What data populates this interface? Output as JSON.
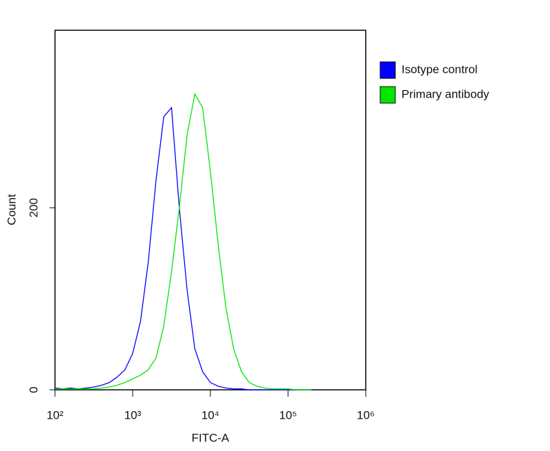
{
  "chart_data": {
    "type": "line",
    "x_label": "FITC-A",
    "y_label": "Count",
    "x": [
      100,
      126,
      158,
      200,
      251,
      316,
      398,
      501,
      631,
      794,
      1000,
      1259,
      1585,
      1995,
      2512,
      3162,
      3981,
      5012,
      6310,
      7943,
      10000,
      12589,
      15849,
      19953,
      25119,
      31623,
      39811,
      50119,
      63096,
      79433,
      100000,
      125893,
      158489,
      199526
    ],
    "series": [
      {
        "name": "Isotype control",
        "color": "#0000ff",
        "values": [
          2,
          1,
          2,
          1,
          2,
          3,
          5,
          8,
          14,
          22,
          40,
          75,
          140,
          230,
          300,
          310,
          200,
          110,
          45,
          20,
          8,
          4,
          2,
          1,
          1,
          0,
          0,
          0,
          0,
          0,
          0,
          0,
          0,
          0
        ]
      },
      {
        "name": "Primary antibody",
        "color": "#00e600",
        "values": [
          1,
          1,
          1,
          1,
          1,
          1,
          2,
          3,
          5,
          8,
          12,
          16,
          22,
          35,
          70,
          130,
          200,
          280,
          325,
          310,
          240,
          160,
          90,
          45,
          20,
          8,
          4,
          2,
          1,
          1,
          1,
          0,
          0,
          0
        ]
      }
    ],
    "x_log": true,
    "xlim": [
      100,
      1000000
    ],
    "xticks": [
      {
        "value": 100,
        "label": "10²"
      },
      {
        "value": 1000,
        "label": "10³"
      },
      {
        "value": 10000,
        "label": "10⁴"
      },
      {
        "value": 100000,
        "label": "10⁵"
      },
      {
        "value": 1000000,
        "label": "10⁶"
      }
    ],
    "ylim": [
      0,
      395
    ],
    "yticks": [
      0,
      200
    ],
    "legend": "outside-right"
  }
}
